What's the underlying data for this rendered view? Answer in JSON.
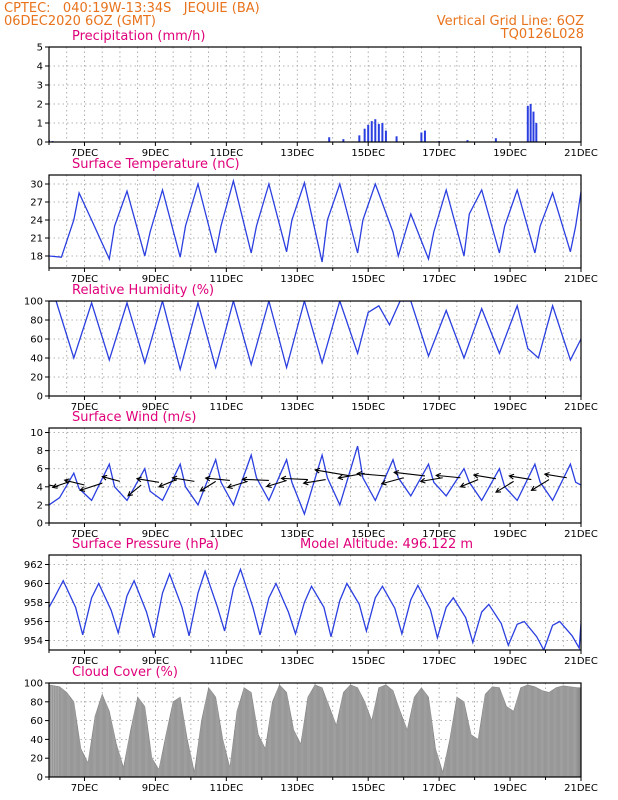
{
  "header": {
    "line1_left": "CPTEC:   040:19W-13:34S   JEQUIE (BA)",
    "line2_left": "06DEC2020 6OZ (GMT)",
    "line1_right": "Vertical Grid Line: 6OZ",
    "line2_right": "TQ0126L028"
  },
  "colors": {
    "series": "#2b3fe0",
    "cloud": "#aaaaaa",
    "title": "#e0007a",
    "header": "#e8731c"
  },
  "chart_data": [
    {
      "type": "bar",
      "title": "Precipitation (mm/h)",
      "ylim": [
        0,
        5
      ],
      "yticks": [
        "0",
        "1",
        "2",
        "3",
        "4",
        "5"
      ],
      "xticks": [
        "7DEC",
        "9DEC",
        "11DEC",
        "13DEC",
        "15DEC",
        "17DEC",
        "19DEC",
        "21DEC"
      ],
      "bars": [
        [
          6.0,
          0.1
        ],
        [
          6.1,
          0.05
        ],
        [
          9.5,
          0.03
        ],
        [
          12.0,
          0.03
        ],
        [
          13.9,
          0.25
        ],
        [
          14.3,
          0.15
        ],
        [
          14.75,
          0.35
        ],
        [
          14.9,
          0.7
        ],
        [
          15.0,
          0.9
        ],
        [
          15.1,
          1.1
        ],
        [
          15.2,
          1.2
        ],
        [
          15.3,
          0.95
        ],
        [
          15.4,
          1.0
        ],
        [
          15.5,
          0.6
        ],
        [
          15.8,
          0.3
        ],
        [
          16.5,
          0.5
        ],
        [
          16.6,
          0.6
        ],
        [
          17.0,
          0.05
        ],
        [
          17.8,
          0.1
        ],
        [
          18.6,
          0.2
        ],
        [
          19.5,
          1.9
        ],
        [
          19.58,
          2.0
        ],
        [
          19.66,
          1.6
        ],
        [
          19.74,
          1.0
        ]
      ]
    },
    {
      "type": "line",
      "title": "Surface Temperature (nC)",
      "ylim": [
        16,
        31.5
      ],
      "yticks": [
        "18",
        "21",
        "24",
        "27",
        "30"
      ],
      "xticks": [
        "7DEC",
        "9DEC",
        "11DEC",
        "13DEC",
        "15DEC",
        "17DEC",
        "19DEC",
        "21DEC"
      ],
      "x": [
        6.0,
        6.35,
        6.7,
        6.85,
        7.2,
        7.7,
        7.85,
        8.2,
        8.7,
        8.85,
        9.2,
        9.7,
        9.85,
        10.2,
        10.7,
        10.85,
        11.2,
        11.7,
        11.85,
        12.2,
        12.7,
        12.85,
        13.2,
        13.7,
        13.85,
        14.2,
        14.7,
        14.85,
        15.2,
        15.7,
        15.85,
        16.2,
        16.7,
        16.85,
        17.2,
        17.7,
        17.85,
        18.2,
        18.7,
        18.85,
        19.2,
        19.7,
        19.85,
        20.2,
        20.7,
        20.85,
        21.0
      ],
      "y": [
        18,
        17.8,
        24,
        28.5,
        24,
        17.5,
        23,
        28.8,
        18,
        22,
        29,
        17.8,
        23,
        30,
        18.5,
        23,
        30.5,
        18.5,
        23,
        30,
        18.7,
        24,
        30.2,
        17,
        24,
        30,
        18.5,
        24,
        30,
        22,
        18,
        25,
        17.5,
        22,
        29,
        18,
        25,
        29,
        18.5,
        23,
        29,
        18.5,
        23,
        28.5,
        18.7,
        23,
        28.7
      ]
    },
    {
      "type": "line",
      "title": "Relative Humidity (%)",
      "ylim": [
        0,
        100
      ],
      "yticks": [
        "0",
        "20",
        "40",
        "60",
        "80",
        "100"
      ],
      "xticks": [
        "7DEC",
        "9DEC",
        "11DEC",
        "13DEC",
        "15DEC",
        "17DEC",
        "19DEC",
        "21DEC"
      ],
      "x": [
        6.0,
        6.2,
        6.7,
        7.2,
        7.7,
        8.2,
        8.7,
        9.2,
        9.7,
        10.2,
        10.7,
        11.2,
        11.7,
        12.2,
        12.7,
        13.2,
        13.7,
        14.2,
        14.7,
        15.0,
        15.3,
        15.6,
        15.9,
        16.2,
        16.7,
        17.2,
        17.7,
        18.2,
        18.7,
        19.2,
        19.5,
        19.8,
        20.2,
        20.7,
        21.0
      ],
      "y": [
        100,
        100,
        40,
        98,
        38,
        98,
        35,
        100,
        28,
        98,
        30,
        100,
        33,
        100,
        30,
        100,
        35,
        100,
        45,
        88,
        95,
        75,
        100,
        100,
        42,
        90,
        40,
        92,
        45,
        95,
        50,
        40,
        95,
        38,
        60
      ]
    },
    {
      "type": "line",
      "title": "Surface Wind (m/s)",
      "ylim": [
        0,
        10.5
      ],
      "yticks": [
        "0",
        "2",
        "4",
        "6",
        "8",
        "10"
      ],
      "xticks": [
        "7DEC",
        "9DEC",
        "11DEC",
        "13DEC",
        "15DEC",
        "17DEC",
        "19DEC",
        "21DEC"
      ],
      "x": [
        6.0,
        6.3,
        6.7,
        6.85,
        7.2,
        7.7,
        7.85,
        8.2,
        8.7,
        8.85,
        9.2,
        9.7,
        9.85,
        10.2,
        10.7,
        10.85,
        11.2,
        11.7,
        11.85,
        12.2,
        12.7,
        12.85,
        13.2,
        13.7,
        13.85,
        14.2,
        14.7,
        14.85,
        15.2,
        15.7,
        15.85,
        16.2,
        16.7,
        16.85,
        17.2,
        17.7,
        17.85,
        18.2,
        18.7,
        18.85,
        19.2,
        19.7,
        19.85,
        20.2,
        20.7,
        20.85,
        21.0
      ],
      "y": [
        2.0,
        2.8,
        5.5,
        3.8,
        2.5,
        6.5,
        4.0,
        2.5,
        6.0,
        3.5,
        2.5,
        6.5,
        4.0,
        2.0,
        7.0,
        4.5,
        2.0,
        7.5,
        5.0,
        2.5,
        7.0,
        4.5,
        1.0,
        7.5,
        5.0,
        2.0,
        8.5,
        5.0,
        2.5,
        7.0,
        5.0,
        3.0,
        6.5,
        4.5,
        3.0,
        6.0,
        4.5,
        2.5,
        6.0,
        4.0,
        2.5,
        6.5,
        4.5,
        2.5,
        6.5,
        4.5,
        4.2
      ],
      "vectors": [
        [
          6.25,
          4.0,
          -1.0,
          0.35
        ],
        [
          6.6,
          4.6,
          -0.8,
          -0.5
        ],
        [
          7.0,
          4.2,
          -0.9,
          0.4
        ],
        [
          7.5,
          4.4,
          -1.0,
          -0.6
        ],
        [
          8.0,
          4.6,
          -0.8,
          0.4
        ],
        [
          8.6,
          4.2,
          -0.6,
          -0.9
        ],
        [
          9.1,
          4.5,
          -1.0,
          0.3
        ],
        [
          9.6,
          4.8,
          -0.8,
          -0.6
        ],
        [
          10.1,
          4.6,
          -1.0,
          0.3
        ],
        [
          10.7,
          4.6,
          -0.7,
          -0.8
        ],
        [
          11.1,
          4.7,
          -1.1,
          0.2
        ],
        [
          11.6,
          4.6,
          -0.9,
          -0.5
        ],
        [
          12.2,
          4.7,
          -1.2,
          0.1
        ],
        [
          12.7,
          4.7,
          -0.9,
          -0.5
        ],
        [
          13.3,
          4.8,
          -1.2,
          0.1
        ],
        [
          13.8,
          4.8,
          -1.0,
          -0.3
        ],
        [
          14.5,
          5.2,
          -1.6,
          0.5
        ],
        [
          14.9,
          5.5,
          -1.2,
          -0.4
        ],
        [
          15.5,
          5.2,
          -1.3,
          0.2
        ],
        [
          16.0,
          5.0,
          -1.0,
          -0.5
        ],
        [
          16.6,
          5.2,
          -1.4,
          0.3
        ],
        [
          17.1,
          5.0,
          -1.0,
          -0.3
        ],
        [
          17.6,
          5.0,
          -1.1,
          0.2
        ],
        [
          18.1,
          4.8,
          -0.8,
          -0.6
        ],
        [
          18.6,
          4.9,
          -1.0,
          0.3
        ],
        [
          19.1,
          4.6,
          -0.8,
          -0.9
        ],
        [
          19.6,
          4.8,
          -1.0,
          0.3
        ],
        [
          20.1,
          4.8,
          -0.8,
          -0.9
        ],
        [
          20.6,
          5.0,
          -1.0,
          0.3
        ]
      ]
    },
    {
      "type": "line",
      "title": "Surface Pressure (hPa)",
      "annotation": "Model Altitude: 496.122 m",
      "ylim": [
        953,
        963
      ],
      "yticks": [
        "954",
        "956",
        "958",
        "960",
        "962"
      ],
      "xticks": [
        "7DEC",
        "9DEC",
        "11DEC",
        "13DEC",
        "15DEC",
        "17DEC",
        "19DEC",
        "21DEC"
      ],
      "x": [
        6.0,
        6.15,
        6.4,
        6.75,
        6.95,
        7.2,
        7.4,
        7.75,
        7.95,
        8.2,
        8.4,
        8.75,
        8.95,
        9.2,
        9.4,
        9.75,
        9.95,
        10.2,
        10.4,
        10.75,
        10.95,
        11.2,
        11.4,
        11.75,
        11.95,
        12.2,
        12.4,
        12.75,
        12.95,
        13.2,
        13.4,
        13.75,
        13.95,
        14.2,
        14.4,
        14.75,
        14.95,
        15.2,
        15.4,
        15.75,
        15.95,
        16.2,
        16.4,
        16.75,
        16.95,
        17.2,
        17.4,
        17.75,
        17.95,
        18.2,
        18.4,
        18.75,
        18.95,
        19.2,
        19.4,
        19.75,
        19.95,
        20.2,
        20.4,
        20.75,
        20.95,
        21.0
      ],
      "y": [
        957.5,
        958.5,
        960.3,
        957.5,
        954.6,
        958.5,
        960.0,
        957.2,
        954.8,
        958.7,
        960.3,
        957.0,
        954.3,
        959.0,
        961.0,
        957.5,
        954.5,
        959.0,
        961.3,
        957.5,
        955.0,
        959.5,
        961.5,
        957.5,
        954.6,
        958.5,
        960.0,
        957.0,
        954.7,
        958.0,
        959.7,
        957.5,
        954.4,
        958.2,
        960.0,
        957.8,
        955.0,
        958.5,
        959.7,
        957.4,
        954.7,
        958.3,
        959.8,
        957.3,
        954.3,
        957.5,
        958.5,
        956.4,
        953.8,
        957.0,
        957.8,
        955.8,
        953.5,
        955.7,
        956.0,
        954.4,
        953.0,
        955.6,
        956.0,
        954.5,
        953.2,
        955.8
      ]
    },
    {
      "type": "bar",
      "title": "Cloud Cover (%)",
      "ylim": [
        0,
        100
      ],
      "yticks": [
        "0",
        "20",
        "40",
        "60",
        "80",
        "100"
      ],
      "xticks": [
        "7DEC",
        "9DEC",
        "11DEC",
        "13DEC",
        "15DEC",
        "17DEC",
        "19DEC",
        "21DEC"
      ],
      "x": [
        6.0,
        6.3,
        6.5,
        6.7,
        6.9,
        7.1,
        7.3,
        7.5,
        7.7,
        7.9,
        8.1,
        8.3,
        8.5,
        8.7,
        8.9,
        9.1,
        9.3,
        9.5,
        9.7,
        9.9,
        10.1,
        10.3,
        10.5,
        10.7,
        10.9,
        11.1,
        11.3,
        11.5,
        11.7,
        11.9,
        12.1,
        12.3,
        12.5,
        12.7,
        12.9,
        13.1,
        13.3,
        13.5,
        13.7,
        13.9,
        14.1,
        14.3,
        14.5,
        14.7,
        14.9,
        15.1,
        15.3,
        15.5,
        15.7,
        15.9,
        16.1,
        16.3,
        16.5,
        16.7,
        16.9,
        17.1,
        17.3,
        17.5,
        17.7,
        17.9,
        18.1,
        18.3,
        18.5,
        18.7,
        18.9,
        19.1,
        19.3,
        19.5,
        19.7,
        19.9,
        20.1,
        20.3,
        20.5,
        20.7,
        20.9,
        21.0
      ],
      "values": [
        98,
        96,
        90,
        80,
        30,
        15,
        65,
        88,
        70,
        35,
        10,
        50,
        85,
        75,
        20,
        8,
        45,
        80,
        85,
        40,
        5,
        60,
        95,
        85,
        40,
        10,
        70,
        95,
        90,
        45,
        30,
        80,
        98,
        90,
        50,
        35,
        85,
        98,
        95,
        75,
        55,
        90,
        98,
        95,
        80,
        60,
        95,
        98,
        92,
        70,
        50,
        85,
        95,
        85,
        30,
        5,
        40,
        85,
        80,
        45,
        40,
        88,
        96,
        95,
        75,
        70,
        95,
        98,
        96,
        92,
        90,
        95,
        97,
        96,
        95,
        95
      ]
    }
  ]
}
